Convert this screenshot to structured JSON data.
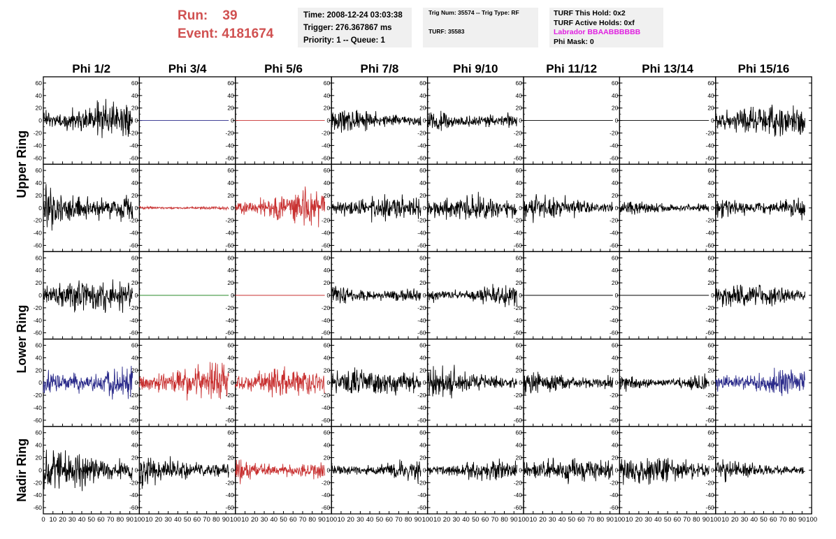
{
  "run_label": "Run:",
  "run_value": "39",
  "event_label": "Event:",
  "event_value": "4181674",
  "time_line": "Time: 2008-12-24 03:03:38",
  "trigger_line": "Trigger: 276.367867 ms",
  "priority_line": "Priority: 1 -- Queue: 1",
  "trig_line": "Trig Num: 35574 -- Trig Type: RF",
  "turf_line": "TURF: 35583",
  "turf_hold_line": "TURF This Hold: 0x2",
  "turf_active_line": "TURF Active Holds: 0xf",
  "labrador_line": "Labrador BBAABBBBBB",
  "phimask_line": "Phi Mask: 0",
  "colors": {
    "run_text": "#d05050",
    "labrador": "#e020e0",
    "black": "#000000",
    "blue": "#2a2a8a",
    "red": "#c83030",
    "green": "#2a8a2a"
  },
  "chart_data": {
    "type": "line",
    "columns": [
      "Phi 1/2",
      "Phi 3/4",
      "Phi 5/6",
      "Phi 7/8",
      "Phi 9/10",
      "Phi 11/12",
      "Phi 13/14",
      "Phi 15/16"
    ],
    "rings": [
      "Upper Ring",
      "Lower Ring",
      "Nadir Ring"
    ],
    "xlim": [
      0,
      100
    ],
    "ylim": [
      -70,
      70
    ],
    "x_ticks": [
      0,
      10,
      20,
      30,
      40,
      50,
      60,
      70,
      80,
      90,
      100
    ],
    "y_ticks": [
      -60,
      -40,
      -20,
      0,
      20,
      40,
      60
    ],
    "panels": [
      [
        {
          "color": "black",
          "amp": 22,
          "seed": 11
        },
        {
          "color": "blue",
          "amp": 0,
          "seed": 12
        },
        {
          "color": "red",
          "amp": 0,
          "seed": 13
        },
        {
          "color": "black",
          "amp": 14,
          "seed": 14
        },
        {
          "color": "black",
          "amp": 18,
          "seed": 15
        },
        {
          "color": "black",
          "amp": 0,
          "seed": 16
        },
        {
          "color": "black",
          "amp": 0,
          "seed": 17
        },
        {
          "color": "black",
          "amp": 18,
          "seed": 18
        }
      ],
      [
        {
          "color": "black",
          "amp": 30,
          "seed": 21
        },
        {
          "color": "red",
          "amp": 3,
          "seed": 22
        },
        {
          "color": "red",
          "amp": 22,
          "seed": 23
        },
        {
          "color": "black",
          "amp": 15,
          "seed": 24
        },
        {
          "color": "black",
          "amp": 15,
          "seed": 25
        },
        {
          "color": "black",
          "amp": 14,
          "seed": 26
        },
        {
          "color": "black",
          "amp": 10,
          "seed": 27
        },
        {
          "color": "black",
          "amp": 18,
          "seed": 28
        }
      ],
      [
        {
          "color": "black",
          "amp": 20,
          "seed": 31
        },
        {
          "color": "green",
          "amp": 0,
          "seed": 32
        },
        {
          "color": "red",
          "amp": 0,
          "seed": 33
        },
        {
          "color": "black",
          "amp": 14,
          "seed": 34
        },
        {
          "color": "black",
          "amp": 16,
          "seed": 35
        },
        {
          "color": "black",
          "amp": 0,
          "seed": 36
        },
        {
          "color": "black",
          "amp": 0,
          "seed": 37
        },
        {
          "color": "black",
          "amp": 14,
          "seed": 38
        }
      ],
      [
        {
          "color": "blue",
          "amp": 24,
          "seed": 41
        },
        {
          "color": "red",
          "amp": 24,
          "seed": 42
        },
        {
          "color": "red",
          "amp": 18,
          "seed": 43
        },
        {
          "color": "black",
          "amp": 17,
          "seed": 44
        },
        {
          "color": "black",
          "amp": 17,
          "seed": 45
        },
        {
          "color": "black",
          "amp": 15,
          "seed": 46
        },
        {
          "color": "black",
          "amp": 14,
          "seed": 47
        },
        {
          "color": "blue",
          "amp": 20,
          "seed": 48
        }
      ],
      [
        {
          "color": "black",
          "amp": 24,
          "seed": 51
        },
        {
          "color": "black",
          "amp": 18,
          "seed": 52
        },
        {
          "color": "red",
          "amp": 16,
          "seed": 53
        },
        {
          "color": "black",
          "amp": 14,
          "seed": 54
        },
        {
          "color": "black",
          "amp": 14,
          "seed": 55
        },
        {
          "color": "black",
          "amp": 15,
          "seed": 56
        },
        {
          "color": "black",
          "amp": 17,
          "seed": 57
        },
        {
          "color": "black",
          "amp": 11,
          "seed": 58
        }
      ]
    ]
  }
}
